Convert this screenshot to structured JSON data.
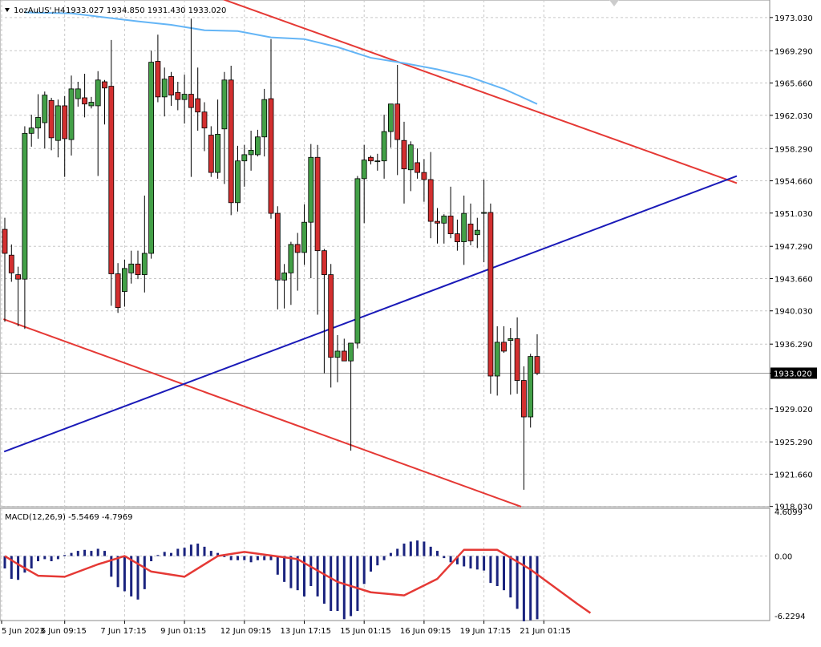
{
  "header": {
    "symbol": "1ozAuUS',H4",
    "ohlc": "1933.027 1934.850 1931.430 1933.020"
  },
  "price_axis": {
    "labels": [
      "1973.030",
      "1969.290",
      "1965.660",
      "1962.030",
      "1958.290",
      "1954.660",
      "1951.030",
      "1947.290",
      "1943.660",
      "1940.030",
      "1936.290",
      "1933.020",
      "1929.020",
      "1925.290",
      "1921.660",
      "1918.030"
    ],
    "current_price": "1933.020"
  },
  "time_axis": {
    "labels": [
      "5 Jun 2023",
      "6 Jun 09:15",
      "7 Jun 17:15",
      "9 Jun 01:15",
      "12 Jun 09:15",
      "13 Jun 17:15",
      "15 Jun 01:15",
      "16 Jun 09:15",
      "19 Jun 17:15",
      "21 Jun 01:15"
    ]
  },
  "macd": {
    "label": "MACD(12,26,9) -5.5469 -4.7969",
    "axis_labels": [
      "4.6099",
      "0.00",
      "-6.2294"
    ]
  },
  "colors": {
    "bull": "#43a047",
    "bear": "#d32f2f",
    "ma": "#64b5f6",
    "trend_red": "#e53935",
    "trend_blue": "#1a1ab8",
    "hist": "#1a237e",
    "signal": "#e53935",
    "grid": "#c8c8c8"
  },
  "chart_data": {
    "type": "candlestick",
    "candles": [
      {
        "o": 1949.2,
        "h": 1950.5,
        "l": 1938.8,
        "c": 1946.5
      },
      {
        "o": 1946.3,
        "h": 1947.5,
        "l": 1943.3,
        "c": 1944.3
      },
      {
        "o": 1944.1,
        "h": 1945.0,
        "l": 1938.3,
        "c": 1943.6
      },
      {
        "o": 1943.6,
        "h": 1960.8,
        "l": 1938.0,
        "c": 1960.0
      },
      {
        "o": 1960.0,
        "h": 1962.1,
        "l": 1958.5,
        "c": 1960.6
      },
      {
        "o": 1960.6,
        "h": 1964.4,
        "l": 1959.4,
        "c": 1961.8
      },
      {
        "o": 1961.2,
        "h": 1964.7,
        "l": 1958.3,
        "c": 1964.3
      },
      {
        "o": 1963.7,
        "h": 1964.0,
        "l": 1958.1,
        "c": 1959.5
      },
      {
        "o": 1959.2,
        "h": 1963.8,
        "l": 1957.3,
        "c": 1963.1
      },
      {
        "o": 1963.1,
        "h": 1964.2,
        "l": 1955.1,
        "c": 1959.4
      },
      {
        "o": 1959.3,
        "h": 1966.5,
        "l": 1957.5,
        "c": 1965.0
      },
      {
        "o": 1963.9,
        "h": 1965.8,
        "l": 1963.0,
        "c": 1965.0
      },
      {
        "o": 1964.0,
        "h": 1966.7,
        "l": 1961.8,
        "c": 1963.3
      },
      {
        "o": 1963.1,
        "h": 1964.1,
        "l": 1962.8,
        "c": 1963.5
      },
      {
        "o": 1963.1,
        "h": 1967.0,
        "l": 1955.2,
        "c": 1966.0
      },
      {
        "o": 1965.8,
        "h": 1966.0,
        "l": 1961.0,
        "c": 1965.1
      },
      {
        "o": 1965.3,
        "h": 1970.5,
        "l": 1940.6,
        "c": 1944.2
      },
      {
        "o": 1944.2,
        "h": 1945.4,
        "l": 1939.8,
        "c": 1940.4
      },
      {
        "o": 1942.2,
        "h": 1945.8,
        "l": 1940.5,
        "c": 1944.8
      },
      {
        "o": 1944.3,
        "h": 1946.8,
        "l": 1943.1,
        "c": 1945.3
      },
      {
        "o": 1945.3,
        "h": 1946.8,
        "l": 1943.6,
        "c": 1944.1
      },
      {
        "o": 1944.1,
        "h": 1953.0,
        "l": 1942.1,
        "c": 1946.5
      },
      {
        "o": 1946.5,
        "h": 1969.3,
        "l": 1945.9,
        "c": 1968.0
      },
      {
        "o": 1968.1,
        "h": 1971.1,
        "l": 1963.5,
        "c": 1964.1
      },
      {
        "o": 1964.1,
        "h": 1967.4,
        "l": 1961.9,
        "c": 1966.1
      },
      {
        "o": 1966.4,
        "h": 1966.9,
        "l": 1963.1,
        "c": 1964.3
      },
      {
        "o": 1964.6,
        "h": 1965.8,
        "l": 1962.6,
        "c": 1963.8
      },
      {
        "o": 1963.8,
        "h": 1966.6,
        "l": 1961.1,
        "c": 1964.4
      },
      {
        "o": 1964.4,
        "h": 1972.9,
        "l": 1955.1,
        "c": 1962.9
      },
      {
        "o": 1963.9,
        "h": 1967.4,
        "l": 1960.3,
        "c": 1962.4
      },
      {
        "o": 1962.4,
        "h": 1963.5,
        "l": 1958.0,
        "c": 1960.6
      },
      {
        "o": 1959.8,
        "h": 1960.8,
        "l": 1955.1,
        "c": 1955.6
      },
      {
        "o": 1955.6,
        "h": 1963.8,
        "l": 1954.9,
        "c": 1959.9
      },
      {
        "o": 1960.5,
        "h": 1966.9,
        "l": 1954.3,
        "c": 1966.0
      },
      {
        "o": 1966.0,
        "h": 1967.6,
        "l": 1950.8,
        "c": 1952.2
      },
      {
        "o": 1952.2,
        "h": 1958.6,
        "l": 1951.2,
        "c": 1956.9
      },
      {
        "o": 1956.9,
        "h": 1958.7,
        "l": 1954.0,
        "c": 1957.6
      },
      {
        "o": 1957.6,
        "h": 1960.3,
        "l": 1955.8,
        "c": 1958.1
      },
      {
        "o": 1957.6,
        "h": 1960.4,
        "l": 1957.4,
        "c": 1959.6
      },
      {
        "o": 1959.6,
        "h": 1965.0,
        "l": 1957.4,
        "c": 1963.8
      },
      {
        "o": 1963.9,
        "h": 1970.6,
        "l": 1950.4,
        "c": 1951.0
      },
      {
        "o": 1951.0,
        "h": 1951.8,
        "l": 1940.2,
        "c": 1943.5
      },
      {
        "o": 1943.5,
        "h": 1945.3,
        "l": 1940.3,
        "c": 1944.3
      },
      {
        "o": 1944.3,
        "h": 1947.8,
        "l": 1940.7,
        "c": 1947.5
      },
      {
        "o": 1947.5,
        "h": 1948.8,
        "l": 1942.3,
        "c": 1946.6
      },
      {
        "o": 1946.6,
        "h": 1952.0,
        "l": 1945.2,
        "c": 1950.0
      },
      {
        "o": 1950.0,
        "h": 1958.8,
        "l": 1943.7,
        "c": 1957.3
      },
      {
        "o": 1957.3,
        "h": 1958.7,
        "l": 1939.6,
        "c": 1946.8
      },
      {
        "o": 1946.8,
        "h": 1947.0,
        "l": 1933.0,
        "c": 1944.1
      },
      {
        "o": 1944.1,
        "h": 1945.3,
        "l": 1931.4,
        "c": 1934.8
      },
      {
        "o": 1934.8,
        "h": 1937.3,
        "l": 1932.0,
        "c": 1935.5
      },
      {
        "o": 1935.5,
        "h": 1936.9,
        "l": 1934.6,
        "c": 1934.4
      },
      {
        "o": 1934.4,
        "h": 1936.4,
        "l": 1924.3,
        "c": 1936.4
      },
      {
        "o": 1936.4,
        "h": 1955.2,
        "l": 1935.8,
        "c": 1954.9
      },
      {
        "o": 1954.9,
        "h": 1958.7,
        "l": 1949.9,
        "c": 1957.0
      },
      {
        "o": 1957.3,
        "h": 1957.5,
        "l": 1956.5,
        "c": 1956.9
      },
      {
        "o": 1956.9,
        "h": 1957.7,
        "l": 1955.8,
        "c": 1956.9
      },
      {
        "o": 1956.9,
        "h": 1962.1,
        "l": 1954.9,
        "c": 1960.2
      },
      {
        "o": 1960.2,
        "h": 1963.3,
        "l": 1958.4,
        "c": 1963.3
      },
      {
        "o": 1963.3,
        "h": 1967.7,
        "l": 1955.3,
        "c": 1959.3
      },
      {
        "o": 1959.2,
        "h": 1961.3,
        "l": 1952.1,
        "c": 1956.0
      },
      {
        "o": 1955.9,
        "h": 1959.1,
        "l": 1953.5,
        "c": 1958.7
      },
      {
        "o": 1956.7,
        "h": 1958.3,
        "l": 1954.9,
        "c": 1955.6
      },
      {
        "o": 1955.6,
        "h": 1957.1,
        "l": 1952.3,
        "c": 1954.8
      },
      {
        "o": 1954.8,
        "h": 1957.9,
        "l": 1948.2,
        "c": 1950.1
      },
      {
        "o": 1950.1,
        "h": 1951.6,
        "l": 1947.6,
        "c": 1949.9
      },
      {
        "o": 1949.9,
        "h": 1950.9,
        "l": 1947.6,
        "c": 1950.7
      },
      {
        "o": 1950.7,
        "h": 1954.0,
        "l": 1948.2,
        "c": 1948.7
      },
      {
        "o": 1948.7,
        "h": 1950.3,
        "l": 1946.8,
        "c": 1947.8
      },
      {
        "o": 1947.8,
        "h": 1953.0,
        "l": 1945.2,
        "c": 1951.0
      },
      {
        "o": 1949.8,
        "h": 1952.1,
        "l": 1947.4,
        "c": 1947.9
      },
      {
        "o": 1948.6,
        "h": 1950.5,
        "l": 1947.1,
        "c": 1949.1
      },
      {
        "o": 1951.0,
        "h": 1954.8,
        "l": 1945.5,
        "c": 1951.1
      },
      {
        "o": 1951.1,
        "h": 1952.1,
        "l": 1930.7,
        "c": 1932.7
      },
      {
        "o": 1932.7,
        "h": 1938.3,
        "l": 1930.5,
        "c": 1936.5
      },
      {
        "o": 1936.5,
        "h": 1938.3,
        "l": 1935.3,
        "c": 1935.5
      },
      {
        "o": 1936.7,
        "h": 1938.1,
        "l": 1930.6,
        "c": 1936.9
      },
      {
        "o": 1936.9,
        "h": 1939.3,
        "l": 1930.7,
        "c": 1932.2
      },
      {
        "o": 1932.2,
        "h": 1933.8,
        "l": 1919.9,
        "c": 1928.1
      },
      {
        "o": 1928.1,
        "h": 1935.2,
        "l": 1926.9,
        "c": 1934.9
      },
      {
        "o": 1934.9,
        "h": 1937.4,
        "l": 1932.8,
        "c": 1933.0
      }
    ],
    "moving_average": [
      {
        "i": 3,
        "v": 1973.6
      },
      {
        "i": 10,
        "v": 1973.5
      },
      {
        "i": 20,
        "v": 1972.6
      },
      {
        "i": 25,
        "v": 1972.2
      },
      {
        "i": 30,
        "v": 1971.6
      },
      {
        "i": 35,
        "v": 1971.5
      },
      {
        "i": 40,
        "v": 1970.8
      },
      {
        "i": 45,
        "v": 1970.6
      },
      {
        "i": 50,
        "v": 1969.7
      },
      {
        "i": 55,
        "v": 1968.5
      },
      {
        "i": 60,
        "v": 1967.9
      },
      {
        "i": 65,
        "v": 1967.2
      },
      {
        "i": 70,
        "v": 1966.3
      },
      {
        "i": 75,
        "v": 1965.0
      },
      {
        "i": 80,
        "v": 1963.3
      }
    ],
    "trend_lines": [
      {
        "color": "trend_red",
        "from": {
          "i": 23,
          "v": 1977.7
        },
        "to": {
          "i": 110,
          "v": 1954.4
        }
      },
      {
        "color": "trend_red",
        "from": {
          "i": -0.2,
          "v": 1939.1
        },
        "to": {
          "i": 77.6,
          "v": 1918.0
        }
      },
      {
        "color": "trend_blue",
        "from": {
          "i": -0.1,
          "v": 1924.2
        },
        "to": {
          "i": 110,
          "v": 1955.2
        }
      }
    ],
    "macd_hist": [
      -1.2,
      -2.2,
      -2.3,
      -1.6,
      -1.2,
      -0.5,
      -0.3,
      -0.5,
      -0.3,
      0.1,
      0.3,
      0.5,
      0.6,
      0.5,
      0.7,
      0.5,
      -2.0,
      -3.0,
      -3.4,
      -3.9,
      -4.2,
      -3.2,
      -0.5,
      0.1,
      0.4,
      0.3,
      0.7,
      0.8,
      1.1,
      1.2,
      0.9,
      0.5,
      0.3,
      -0.1,
      -0.4,
      -0.4,
      -0.4,
      -0.6,
      -0.4,
      -0.4,
      -0.4,
      -1.8,
      -2.5,
      -3.1,
      -3.3,
      -3.9,
      -2.9,
      -3.9,
      -4.6,
      -5.3,
      -5.3,
      -6.1,
      -5.8,
      -5.3,
      -2.7,
      -1.5,
      -0.9,
      -0.4,
      0.3,
      0.7,
      1.2,
      1.4,
      1.5,
      1.4,
      0.9,
      0.5,
      -0.2,
      -0.6,
      -0.8,
      -1.0,
      -1.2,
      -1.3,
      -1.4,
      -2.6,
      -2.9,
      -3.3,
      -4.0,
      -5.1,
      -6.3,
      -6.2,
      -6.1
    ],
    "macd_signal": [
      {
        "i": 0,
        "v": 0.0
      },
      {
        "i": 2,
        "v": -0.8
      },
      {
        "i": 5,
        "v": -1.9
      },
      {
        "i": 9,
        "v": -2.0
      },
      {
        "i": 14,
        "v": -0.8
      },
      {
        "i": 18,
        "v": 0.0
      },
      {
        "i": 22,
        "v": -1.5
      },
      {
        "i": 27,
        "v": -2.0
      },
      {
        "i": 32,
        "v": 0.0
      },
      {
        "i": 36,
        "v": 0.4
      },
      {
        "i": 44,
        "v": -0.3
      },
      {
        "i": 50,
        "v": -2.5
      },
      {
        "i": 55,
        "v": -3.5
      },
      {
        "i": 60,
        "v": -3.8
      },
      {
        "i": 65,
        "v": -2.2
      },
      {
        "i": 69,
        "v": 0.6
      },
      {
        "i": 74,
        "v": 0.6
      },
      {
        "i": 79,
        "v": -1.3
      },
      {
        "i": 86,
        "v": -4.6
      },
      {
        "i": 88,
        "v": -5.5
      }
    ],
    "price_range": [
      1918.0,
      1975.0
    ],
    "macd_range": [
      -6.2294,
      4.6099
    ]
  }
}
